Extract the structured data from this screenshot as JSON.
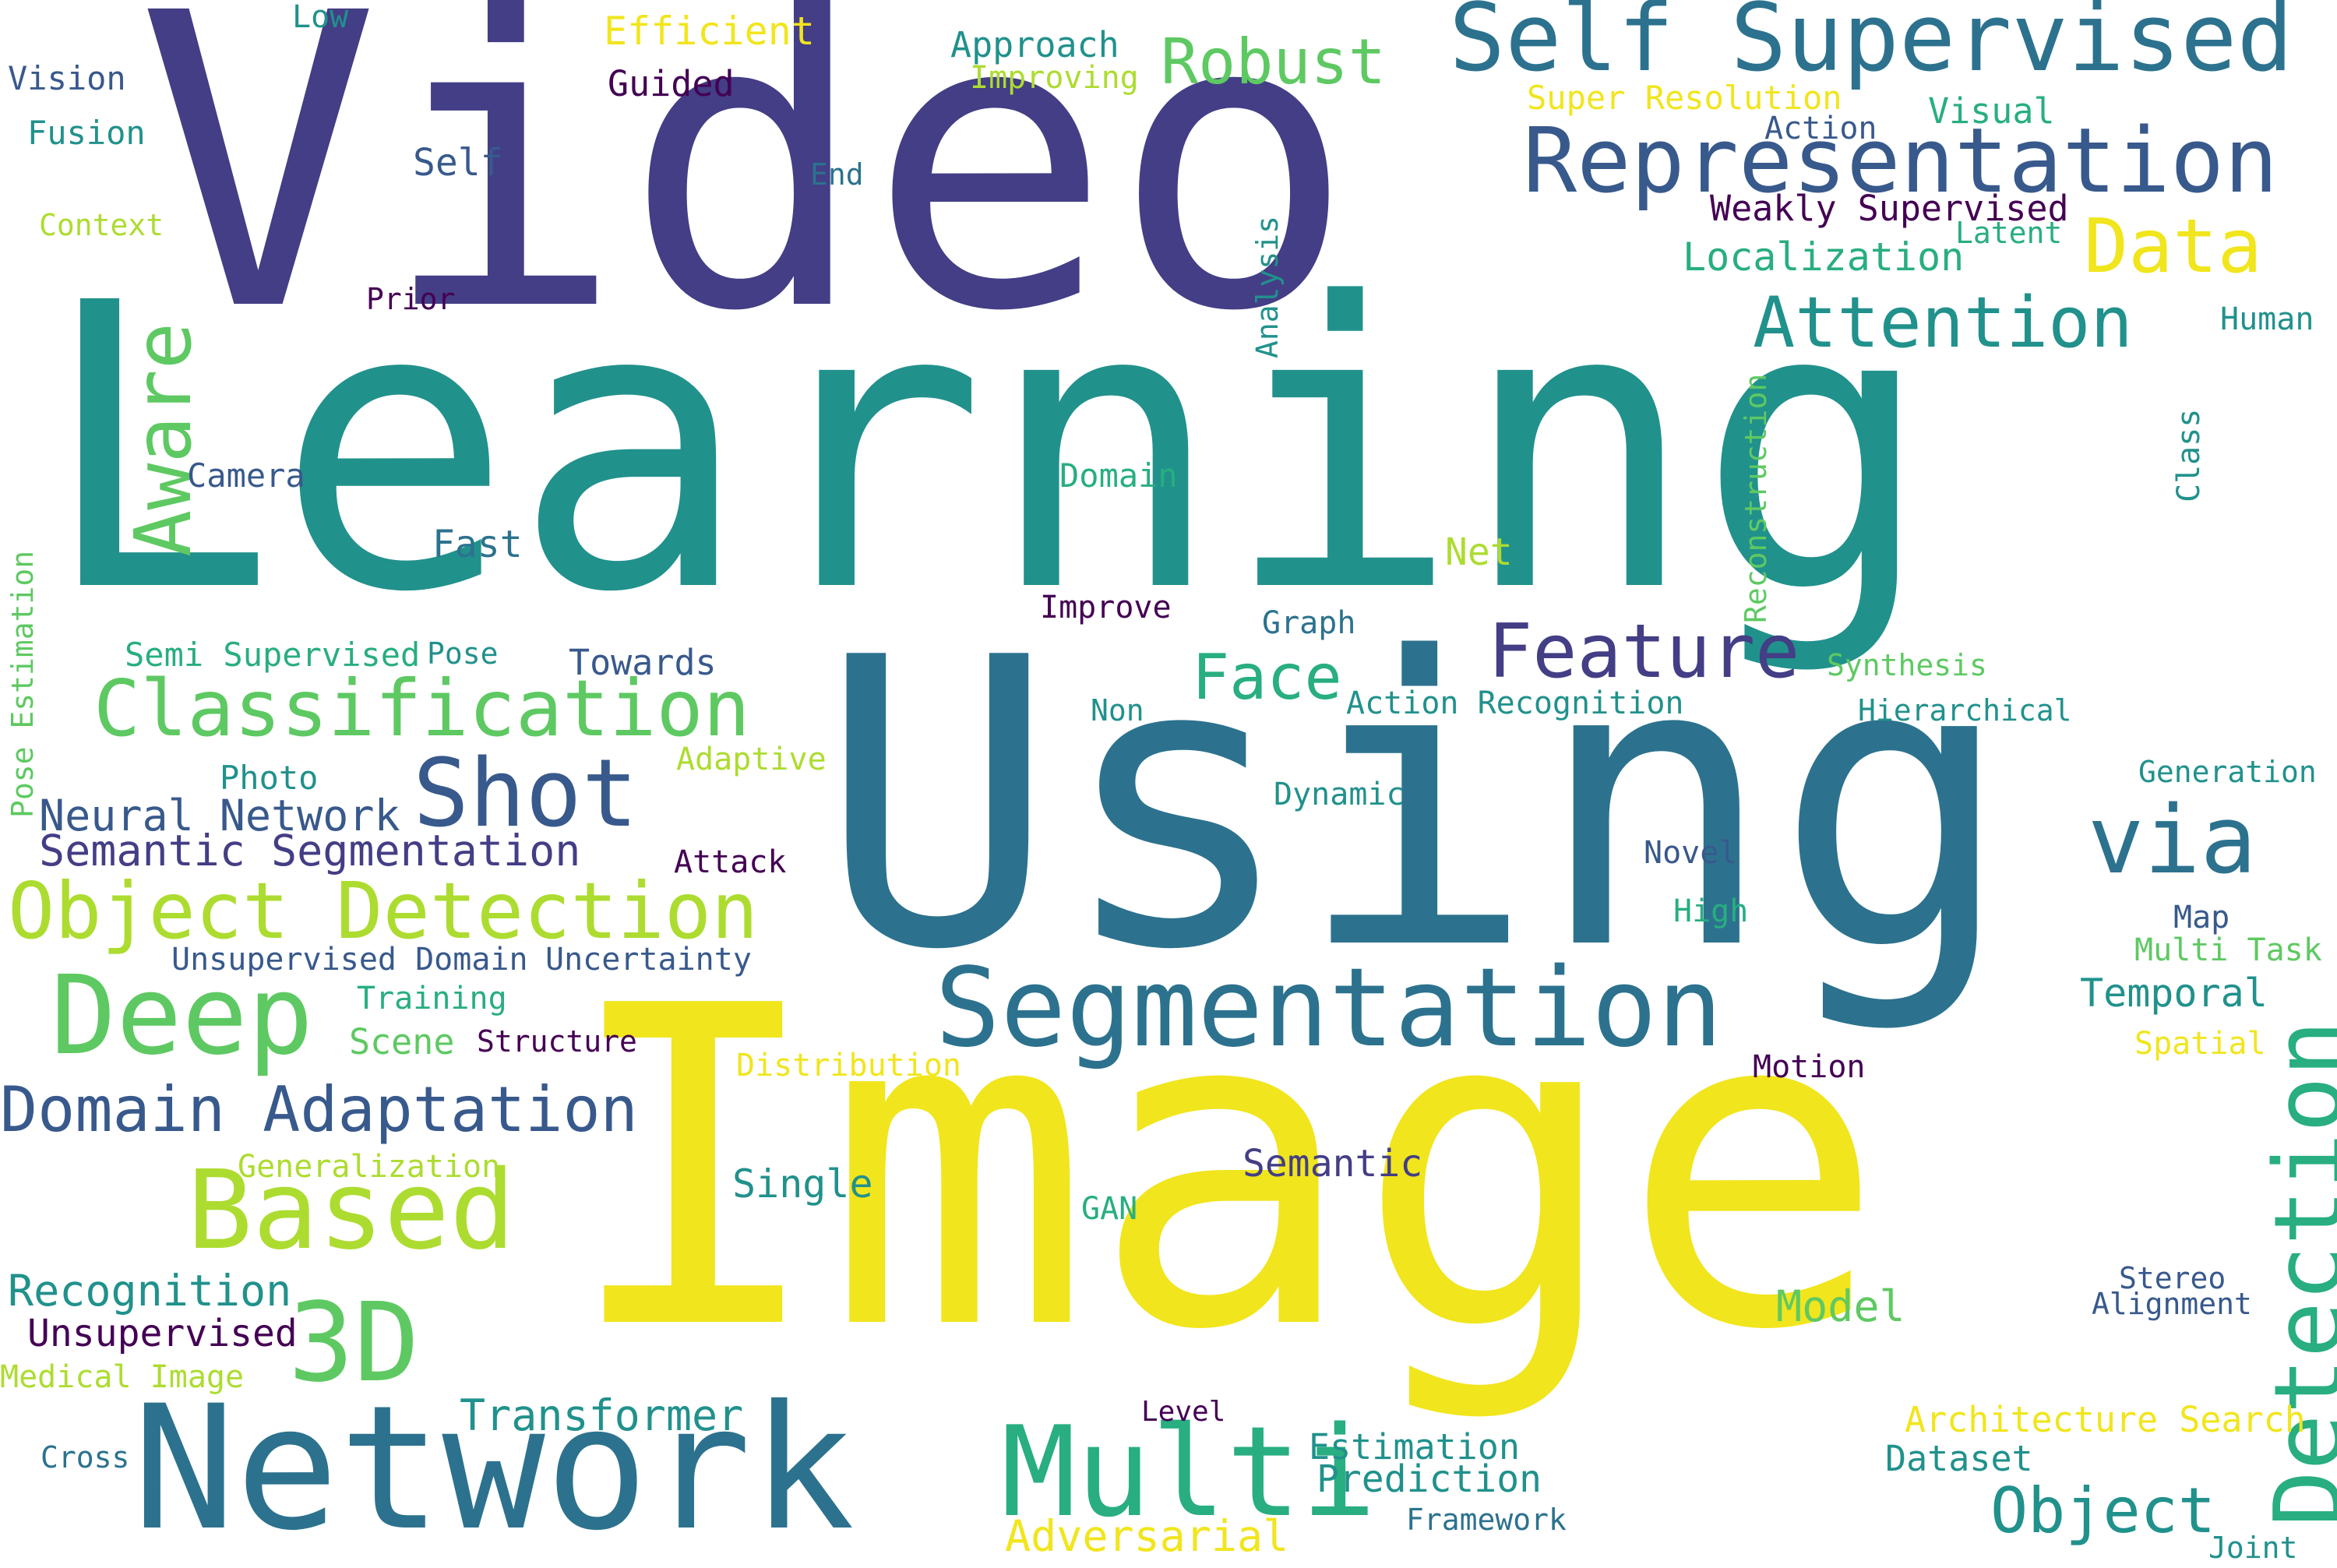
{
  "palette": {
    "dark_purple": "#440154",
    "indigo": "#433e85",
    "blue": "#38598c",
    "steel_blue": "#2c728e",
    "teal": "#21918c",
    "sea_green": "#28ae80",
    "green": "#5ec962",
    "lime": "#addc30",
    "yellow": "#f1e51d"
  },
  "words": [
    {
      "text": "Video",
      "color": "#433e85"
    },
    {
      "text": "Learning",
      "color": "#21918c"
    },
    {
      "text": "Using",
      "color": "#2c728e"
    },
    {
      "text": "Image",
      "color": "#f1e51d"
    },
    {
      "text": "Network",
      "color": "#2c728e"
    },
    {
      "text": "Self Supervised",
      "color": "#2c728e"
    },
    {
      "text": "Representation",
      "color": "#38598c"
    },
    {
      "text": "Segmentation",
      "color": "#2c728e"
    },
    {
      "text": "Detection",
      "color": "#28ae80"
    },
    {
      "text": "Multi",
      "color": "#28ae80"
    },
    {
      "text": "Classification",
      "color": "#5ec962"
    },
    {
      "text": "Object Detection",
      "color": "#addc30"
    },
    {
      "text": "Based",
      "color": "#addc30"
    },
    {
      "text": "Deep",
      "color": "#5ec962"
    },
    {
      "text": "3D",
      "color": "#5ec962"
    },
    {
      "text": "Feature",
      "color": "#433e85"
    },
    {
      "text": "Attention",
      "color": "#21918c"
    },
    {
      "text": "Shot",
      "color": "#38598c"
    },
    {
      "text": "via",
      "color": "#2c728e"
    },
    {
      "text": "Data",
      "color": "#f1e51d"
    },
    {
      "text": "Aware",
      "color": "#5ec962"
    },
    {
      "text": "Domain Adaptation",
      "color": "#38598c"
    },
    {
      "text": "Robust",
      "color": "#5ec962"
    },
    {
      "text": "Face",
      "color": "#28ae80"
    },
    {
      "text": "Object",
      "color": "#21918c"
    },
    {
      "text": "Localization",
      "color": "#28ae80"
    },
    {
      "text": "Transformer",
      "color": "#21918c"
    },
    {
      "text": "Temporal",
      "color": "#21918c"
    },
    {
      "text": "Model",
      "color": "#5ec962"
    },
    {
      "text": "Adversarial",
      "color": "#f1e51d"
    },
    {
      "text": "Semantic Segmentation",
      "color": "#433e85"
    },
    {
      "text": "Neural Network",
      "color": "#38598c"
    },
    {
      "text": "Recognition",
      "color": "#21918c"
    },
    {
      "text": "Unsupervised",
      "color": "#440154"
    },
    {
      "text": "Semantic",
      "color": "#433e85"
    },
    {
      "text": "Single",
      "color": "#21918c"
    },
    {
      "text": "Prediction",
      "color": "#21918c"
    },
    {
      "text": "Estimation",
      "color": "#21918c"
    },
    {
      "text": "Dataset",
      "color": "#21918c"
    },
    {
      "text": "Architecture Search",
      "color": "#f1e51d"
    },
    {
      "text": "Efficient",
      "color": "#f1e51d"
    },
    {
      "text": "Guided",
      "color": "#440154"
    },
    {
      "text": "Approach",
      "color": "#21918c"
    },
    {
      "text": "Improving",
      "color": "#addc30"
    },
    {
      "text": "Super Resolution",
      "color": "#f1e51d"
    },
    {
      "text": "Action",
      "color": "#38598c"
    },
    {
      "text": "Visual",
      "color": "#28ae80"
    },
    {
      "text": "Weakly Supervised",
      "color": "#440154"
    },
    {
      "text": "Latent",
      "color": "#28ae80"
    },
    {
      "text": "Vision",
      "color": "#38598c"
    },
    {
      "text": "Low",
      "color": "#21918c"
    },
    {
      "text": "Fusion",
      "color": "#21918c"
    },
    {
      "text": "Self",
      "color": "#38598c"
    },
    {
      "text": "End",
      "color": "#2c728e"
    },
    {
      "text": "Context",
      "color": "#addc30"
    },
    {
      "text": "Prior",
      "color": "#440154"
    },
    {
      "text": "Analysis",
      "color": "#21918c"
    },
    {
      "text": "Human",
      "color": "#21918c"
    },
    {
      "text": "Reconstruction",
      "color": "#5ec962"
    },
    {
      "text": "Class",
      "color": "#21918c"
    },
    {
      "text": "Camera",
      "color": "#38598c"
    },
    {
      "text": "Domain",
      "color": "#28ae80"
    },
    {
      "text": "Fast",
      "color": "#2c728e"
    },
    {
      "text": "Net",
      "color": "#addc30"
    },
    {
      "text": "Improve",
      "color": "#440154"
    },
    {
      "text": "Graph",
      "color": "#2c728e"
    },
    {
      "text": "Pose Estimation",
      "color": "#5ec962"
    },
    {
      "text": "Semi Supervised",
      "color": "#28ae80"
    },
    {
      "text": "Pose",
      "color": "#21918c"
    },
    {
      "text": "Towards",
      "color": "#38598c"
    },
    {
      "text": "Synthesis",
      "color": "#5ec962"
    },
    {
      "text": "Action Recognition",
      "color": "#21918c"
    },
    {
      "text": "Non",
      "color": "#21918c"
    },
    {
      "text": "Hierarchical",
      "color": "#21918c"
    },
    {
      "text": "Photo",
      "color": "#21918c"
    },
    {
      "text": "Adaptive",
      "color": "#addc30"
    },
    {
      "text": "Generation",
      "color": "#21918c"
    },
    {
      "text": "Dynamic",
      "color": "#21918c"
    },
    {
      "text": "Attack",
      "color": "#440154"
    },
    {
      "text": "Novel",
      "color": "#38598c"
    },
    {
      "text": "High",
      "color": "#28ae80"
    },
    {
      "text": "Map",
      "color": "#38598c"
    },
    {
      "text": "Multi Task",
      "color": "#5ec962"
    },
    {
      "text": "Unsupervised Domain",
      "color": "#38598c"
    },
    {
      "text": "Uncertainty",
      "color": "#38598c"
    },
    {
      "text": "Training",
      "color": "#28ae80"
    },
    {
      "text": "Scene",
      "color": "#5ec962"
    },
    {
      "text": "Structure",
      "color": "#440154"
    },
    {
      "text": "Distribution",
      "color": "#f1e51d"
    },
    {
      "text": "Motion",
      "color": "#440154"
    },
    {
      "text": "Spatial",
      "color": "#f1e51d"
    },
    {
      "text": "Generalization",
      "color": "#addc30"
    },
    {
      "text": "GAN",
      "color": "#28ae80"
    },
    {
      "text": "Stereo",
      "color": "#38598c"
    },
    {
      "text": "Alignment",
      "color": "#38598c"
    },
    {
      "text": "Medical Image",
      "color": "#addc30"
    },
    {
      "text": "Cross",
      "color": "#2c728e"
    },
    {
      "text": "Level",
      "color": "#440154"
    },
    {
      "text": "Framework",
      "color": "#2c728e"
    },
    {
      "text": "Joint",
      "color": "#21918c"
    }
  ]
}
